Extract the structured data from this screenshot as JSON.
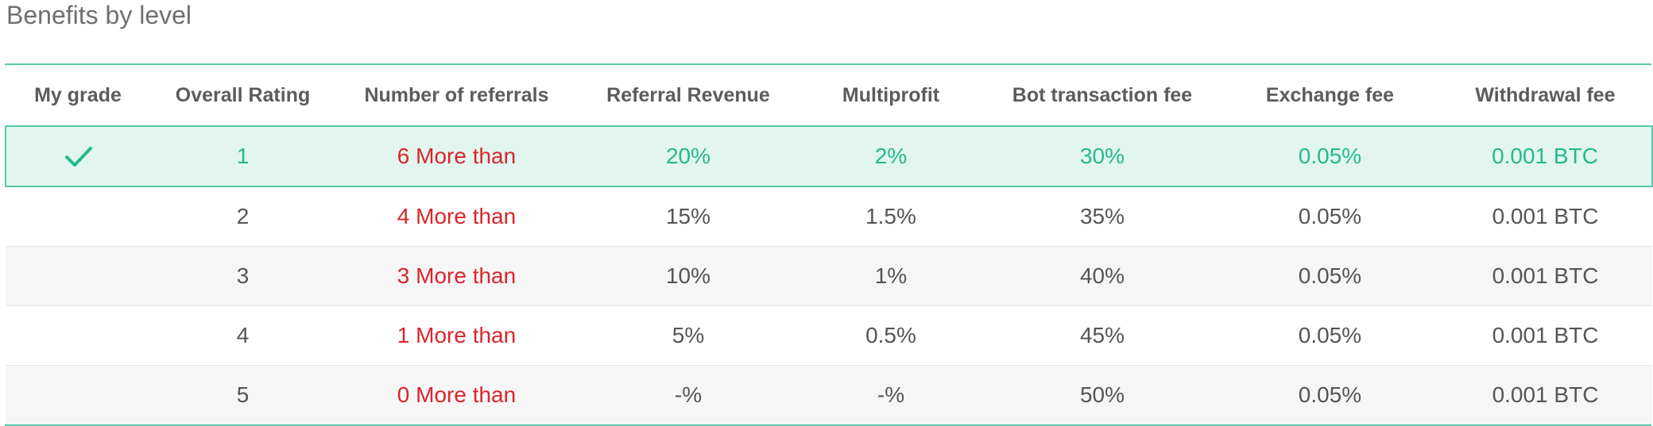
{
  "section_title": "Benefits by level",
  "table": {
    "headers": [
      "My grade",
      "Overall Rating",
      "Number of referrals",
      "Referral Revenue",
      "Multiprofit",
      "Bot transaction fee",
      "Exchange fee",
      "Withdrawal fee"
    ],
    "current_grade_icon": "check-icon",
    "rows": [
      {
        "current": true,
        "rating": "1",
        "referrals": "6 More than",
        "referral_revenue": "20%",
        "multiprofit": "2%",
        "bot_fee": "30%",
        "exchange_fee": "0.05%",
        "withdrawal_fee": "0.001 BTC"
      },
      {
        "current": false,
        "rating": "2",
        "referrals": "4 More than",
        "referral_revenue": "15%",
        "multiprofit": "1.5%",
        "bot_fee": "35%",
        "exchange_fee": "0.05%",
        "withdrawal_fee": "0.001 BTC"
      },
      {
        "current": false,
        "rating": "3",
        "referrals": "3 More than",
        "referral_revenue": "10%",
        "multiprofit": "1%",
        "bot_fee": "40%",
        "exchange_fee": "0.05%",
        "withdrawal_fee": "0.001 BTC"
      },
      {
        "current": false,
        "rating": "4",
        "referrals": "1 More than",
        "referral_revenue": "5%",
        "multiprofit": "0.5%",
        "bot_fee": "45%",
        "exchange_fee": "0.05%",
        "withdrawal_fee": "0.001 BTC"
      },
      {
        "current": false,
        "rating": "5",
        "referrals": "0 More than",
        "referral_revenue": "-%",
        "multiprofit": "-%",
        "bot_fee": "50%",
        "exchange_fee": "0.05%",
        "withdrawal_fee": "0.001 BTC"
      }
    ]
  },
  "colors": {
    "accent": "#25b88e",
    "accent_border": "#5cc6a9",
    "highlight_bg": "#e2f6ef",
    "referral_text": "#d8262c",
    "alt_row_bg": "#f6f6f6"
  }
}
